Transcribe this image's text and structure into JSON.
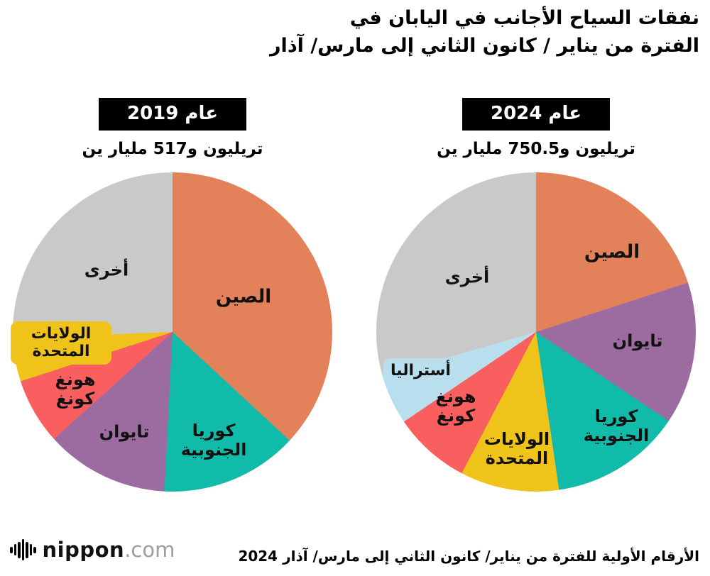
{
  "title": {
    "line1": "نفقات السياح الأجانب في اليابان في",
    "line2": "الفترة من يناير / كانون الثاني إلى مارس/ آذار"
  },
  "footer": {
    "logo_icon": "sound-wave-icon",
    "logo_name": "nippon",
    "logo_tld": ".com",
    "source_note": "الأرقام الأولية للفترة من يناير/ كانون الثاني إلى مارس/ آذار 2024"
  },
  "chart_data": [
    {
      "type": "pie",
      "title": "عام 2019",
      "subtitle": "تريليون و517 مليار ين",
      "labels": [
        "الصين",
        "كوريا الجنوبية",
        "تايوان",
        "هونغ كونغ",
        "الولايات المتحدة",
        "أخرى"
      ],
      "values_pct": [
        36.9,
        13.9,
        12.5,
        6.7,
        4.4,
        25.6
      ],
      "colors": [
        "#E2815A",
        "#10BCA9",
        "#9C6BA0",
        "#F95F5F",
        "#EFC31A",
        "#C9C9C9"
      ],
      "start_angle_deg": 0,
      "direction": "clockwise",
      "legend": "labels drawn inside slices"
    },
    {
      "type": "pie",
      "title": "عام 2024",
      "subtitle": "تريليون و750.5 مليار ين",
      "labels": [
        "الصين",
        "تايوان",
        "كوريا الجنوبية",
        "الولايات المتحدة",
        "هونغ كونغ",
        "أستراليا",
        "أخرى"
      ],
      "values_pct": [
        20.0,
        14.4,
        13.3,
        10.0,
        7.8,
        5.0,
        29.5
      ],
      "colors": [
        "#E2815A",
        "#9C6BA0",
        "#10BCA9",
        "#EFC31A",
        "#F95F5F",
        "#B9DFEF",
        "#C9C9C9"
      ],
      "start_angle_deg": 0,
      "direction": "clockwise",
      "legend": "labels drawn inside slices"
    }
  ]
}
